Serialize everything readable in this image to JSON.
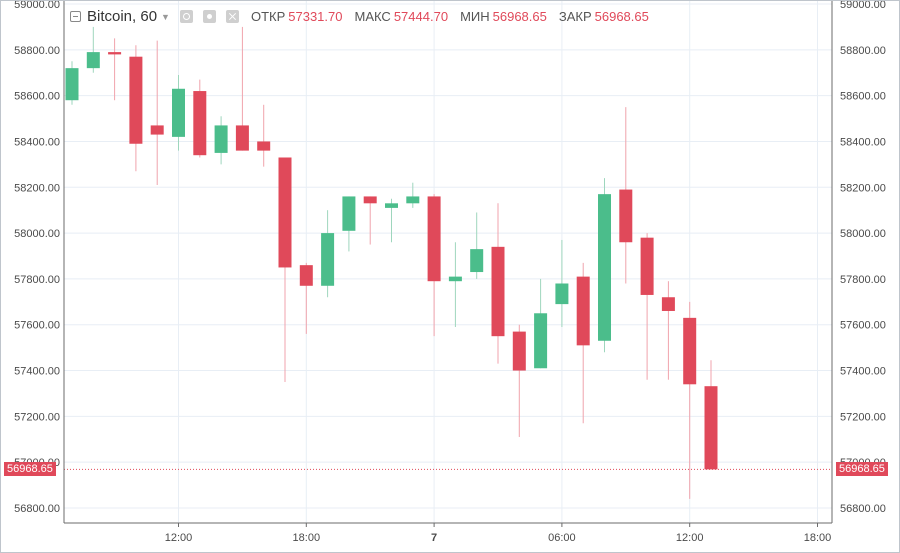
{
  "legend": {
    "symbol": "Bitcoin, 60",
    "open_label": "ОТКР",
    "open_value": "57331.70",
    "high_label": "МАКС",
    "high_value": "57444.70",
    "low_label": "МИН",
    "low_value": "56968.65",
    "close_label": "ЗАКР",
    "close_value": "56968.65"
  },
  "last_price_label": "56968.65",
  "colors": {
    "up": "#4bbd8b",
    "down": "#e0495a",
    "grid": "#e8eef5",
    "axis": "#6b6b6b"
  },
  "chart_data": {
    "type": "candlestick",
    "title": "Bitcoin, 60",
    "ylim": [
      56700,
      59000
    ],
    "y_ticks": [
      {
        "value": 56800,
        "label": "56800.00"
      },
      {
        "value": 57000,
        "label": "57000.00"
      },
      {
        "value": 57200,
        "label": "57200.00"
      },
      {
        "value": 57400,
        "label": "57400.00"
      },
      {
        "value": 57600,
        "label": "57600.00"
      },
      {
        "value": 57800,
        "label": "57800.00"
      },
      {
        "value": 58000,
        "label": "58000.00"
      },
      {
        "value": 58200,
        "label": "58200.00"
      },
      {
        "value": 58400,
        "label": "58400.00"
      },
      {
        "value": 58600,
        "label": "58600.00"
      },
      {
        "value": 58800,
        "label": "58800.00"
      },
      {
        "value": 59000,
        "label": "59000.00"
      }
    ],
    "x_ticks": [
      {
        "index": 5,
        "label": "12:00",
        "bold": false
      },
      {
        "index": 11,
        "label": "18:00",
        "bold": false
      },
      {
        "index": 17,
        "label": "7",
        "bold": true
      },
      {
        "index": 23,
        "label": "06:00",
        "bold": false
      },
      {
        "index": 29,
        "label": "12:00",
        "bold": false
      },
      {
        "index": 35,
        "label": "18:00",
        "bold": false
      }
    ],
    "last_price": 56968.65,
    "candles": [
      {
        "o": 58580,
        "h": 58750,
        "l": 58560,
        "c": 58720
      },
      {
        "o": 58720,
        "h": 58900,
        "l": 58700,
        "c": 58790
      },
      {
        "o": 58790,
        "h": 58850,
        "l": 58580,
        "c": 58780
      },
      {
        "o": 58770,
        "h": 58820,
        "l": 58270,
        "c": 58390
      },
      {
        "o": 58470,
        "h": 58840,
        "l": 58210,
        "c": 58430
      },
      {
        "o": 58420,
        "h": 58690,
        "l": 58360,
        "c": 58630
      },
      {
        "o": 58620,
        "h": 58670,
        "l": 58330,
        "c": 58340
      },
      {
        "o": 58350,
        "h": 58510,
        "l": 58300,
        "c": 58470
      },
      {
        "o": 58470,
        "h": 58900,
        "l": 58360,
        "c": 58360
      },
      {
        "o": 58400,
        "h": 58560,
        "l": 58290,
        "c": 58360
      },
      {
        "o": 58330,
        "h": 58330,
        "l": 57350,
        "c": 57850
      },
      {
        "o": 57860,
        "h": 57870,
        "l": 57560,
        "c": 57770
      },
      {
        "o": 57770,
        "h": 58100,
        "l": 57720,
        "c": 58000
      },
      {
        "o": 58010,
        "h": 58160,
        "l": 57920,
        "c": 58160
      },
      {
        "o": 58160,
        "h": 58160,
        "l": 57950,
        "c": 58130
      },
      {
        "o": 58110,
        "h": 58150,
        "l": 57960,
        "c": 58130
      },
      {
        "o": 58130,
        "h": 58220,
        "l": 58110,
        "c": 58160
      },
      {
        "o": 58160,
        "h": 58170,
        "l": 57550,
        "c": 57790
      },
      {
        "o": 57790,
        "h": 57960,
        "l": 57590,
        "c": 57810
      },
      {
        "o": 57830,
        "h": 58090,
        "l": 57800,
        "c": 57930
      },
      {
        "o": 57940,
        "h": 58130,
        "l": 57430,
        "c": 57550
      },
      {
        "o": 57570,
        "h": 57600,
        "l": 57110,
        "c": 57400
      },
      {
        "o": 57410,
        "h": 57800,
        "l": 57410,
        "c": 57650
      },
      {
        "o": 57690,
        "h": 57970,
        "l": 57590,
        "c": 57780
      },
      {
        "o": 57810,
        "h": 57870,
        "l": 57170,
        "c": 57510
      },
      {
        "o": 57530,
        "h": 58240,
        "l": 57480,
        "c": 58170
      },
      {
        "o": 58190,
        "h": 58550,
        "l": 57780,
        "c": 57960
      },
      {
        "o": 57980,
        "h": 58000,
        "l": 57360,
        "c": 57730
      },
      {
        "o": 57720,
        "h": 57790,
        "l": 57360,
        "c": 57660
      },
      {
        "o": 57630,
        "h": 57700,
        "l": 56840,
        "c": 57340
      },
      {
        "o": 57331.7,
        "h": 57444.7,
        "l": 56968.65,
        "c": 56968.65
      }
    ]
  }
}
